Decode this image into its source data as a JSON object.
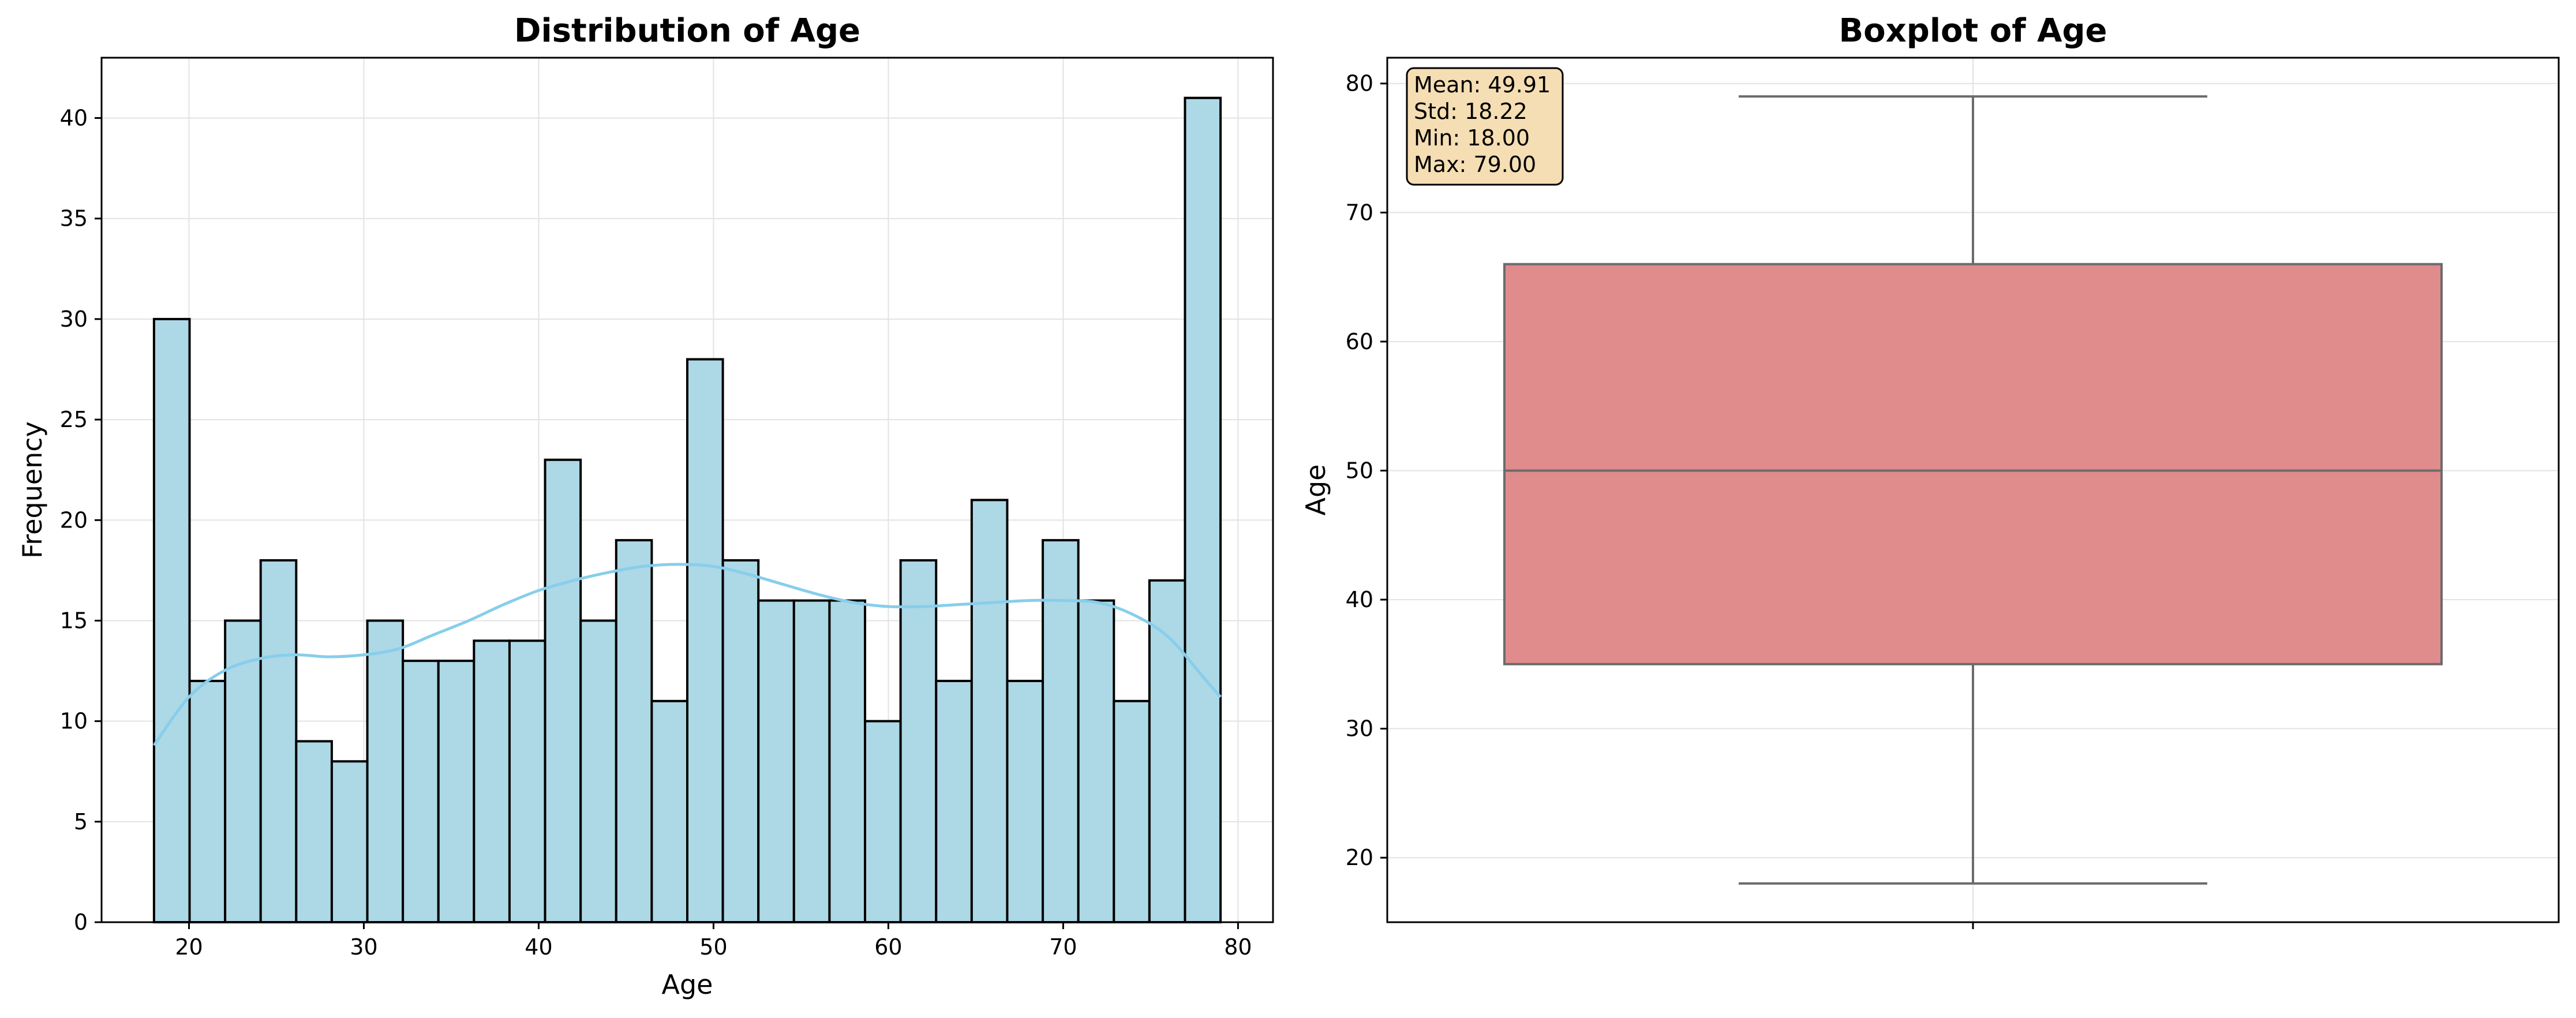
{
  "chart_data": [
    {
      "type": "bar",
      "title": "Distribution of Age",
      "xlabel": "Age",
      "ylabel": "Frequency",
      "xlim": [
        15,
        82
      ],
      "ylim": [
        0,
        43
      ],
      "xticks": [
        20,
        30,
        40,
        50,
        60,
        70,
        80
      ],
      "yticks": [
        0,
        5,
        10,
        15,
        20,
        25,
        30,
        35,
        40
      ],
      "grid": true,
      "bar_color": "#add8e6",
      "edge_color": "#000000",
      "bin_start": 18,
      "bin_end": 79,
      "values": [
        30,
        12,
        15,
        18,
        9,
        8,
        15,
        13,
        13,
        14,
        14,
        23,
        15,
        19,
        11,
        28,
        18,
        16,
        16,
        16,
        10,
        18,
        12,
        21,
        12,
        19,
        16,
        11,
        17,
        41
      ],
      "kde": {
        "color": "#87ceeb",
        "x": [
          18,
          20,
          22,
          24,
          26,
          28,
          30,
          32,
          34,
          36,
          38,
          40,
          42,
          44,
          46,
          48,
          50,
          52,
          54,
          56,
          58,
          60,
          62,
          64,
          66,
          68,
          70,
          72,
          74,
          76,
          78,
          79
        ],
        "y": [
          8.8,
          11.2,
          12.5,
          13.1,
          13.3,
          13.2,
          13.3,
          13.6,
          14.3,
          15.0,
          15.8,
          16.5,
          17.0,
          17.4,
          17.7,
          17.8,
          17.7,
          17.3,
          16.8,
          16.3,
          15.9,
          15.7,
          15.7,
          15.8,
          15.9,
          16.0,
          16.0,
          15.9,
          15.3,
          14.2,
          12.2,
          11.2
        ]
      }
    },
    {
      "type": "box",
      "title": "Boxplot of Age",
      "xlabel": "",
      "ylabel": "Age",
      "ylim": [
        15,
        82
      ],
      "yticks": [
        20,
        30,
        40,
        50,
        60,
        70,
        80
      ],
      "grid": true,
      "box_color": "#e08b8c",
      "line_color": "#6b6b6b",
      "box": {
        "whislo": 18,
        "q1": 35,
        "median": 50,
        "q3": 66,
        "whishi": 79
      },
      "stats_box": {
        "lines": [
          "Mean: 49.91",
          "Std: 18.22",
          "Min: 18.00",
          "Max: 79.00"
        ],
        "facecolor": "#f5deb3",
        "placement": "top-left"
      }
    }
  ]
}
